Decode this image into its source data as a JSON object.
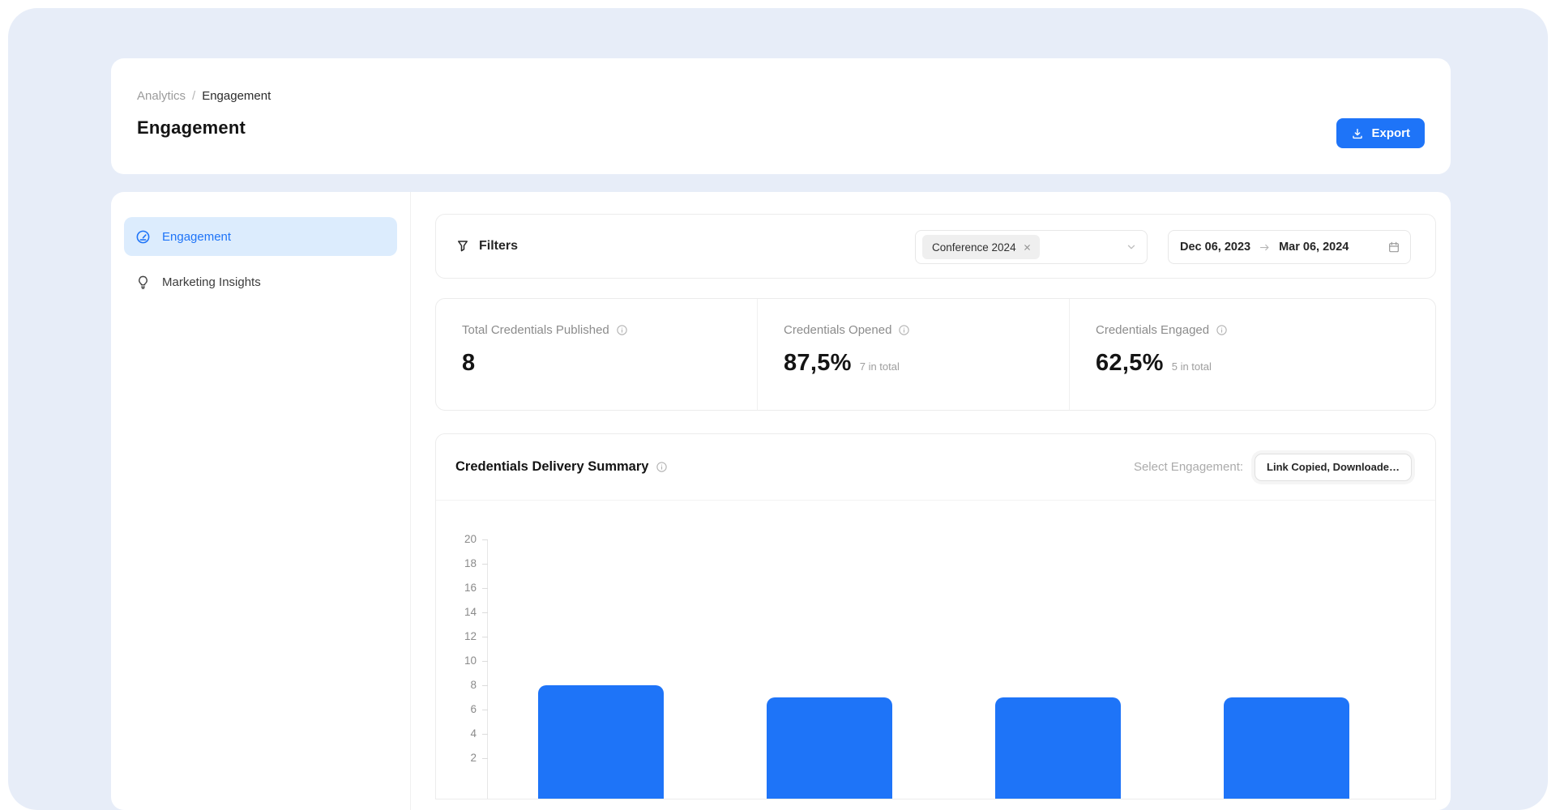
{
  "page": {
    "breadcrumb": {
      "parent": "Analytics",
      "separator": "/",
      "current": "Engagement"
    },
    "title": "Engagement",
    "export_label": "Export"
  },
  "sidebar": {
    "items": [
      {
        "label": "Engagement",
        "icon": "gauge-icon",
        "active": true
      },
      {
        "label": "Marketing Insights",
        "icon": "lightbulb-icon",
        "active": false
      }
    ]
  },
  "filters": {
    "label": "Filters",
    "chip_label": "Conference 2024",
    "date_start": "Dec 06, 2023",
    "date_end": "Mar 06, 2024"
  },
  "stats": [
    {
      "label": "Total Credentials Published",
      "value": "8",
      "suffix": ""
    },
    {
      "label": "Credentials Opened",
      "value": "87,5%",
      "suffix": "7 in total"
    },
    {
      "label": "Credentials Engaged",
      "value": "62,5%",
      "suffix": "5 in total"
    }
  ],
  "chart_section": {
    "title": "Credentials Delivery Summary",
    "select_label": "Select Engagement:",
    "select_value": "Link Copied, Downloade…"
  },
  "chart_data": {
    "type": "bar",
    "categories": [
      "",
      "",
      "",
      ""
    ],
    "values": [
      8,
      7,
      7,
      7
    ],
    "title": "Credentials Delivery Summary",
    "xlabel": "",
    "ylabel": "",
    "ylim": [
      0,
      20
    ],
    "ytick_step": 2,
    "grid": false,
    "bar_color": "#1e74f8"
  },
  "colors": {
    "accent_blue": "#1e74f8",
    "active_item_bg": "#dcecfd",
    "canvas_bg": "#e7edf8",
    "muted_text": "#8c8c8c"
  }
}
